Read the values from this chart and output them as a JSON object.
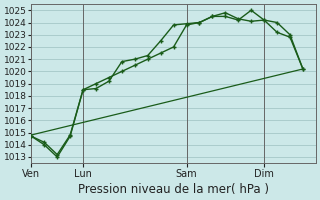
{
  "title": "Pression niveau de la mer( hPa )",
  "background_color": "#cce8e8",
  "grid_color": "#aacccc",
  "line_color": "#1a5c1a",
  "ylim": [
    1012.5,
    1025.5
  ],
  "yticks": [
    1013,
    1014,
    1015,
    1016,
    1017,
    1018,
    1019,
    1020,
    1021,
    1022,
    1023,
    1024,
    1025
  ],
  "day_labels": [
    "Ven",
    "Lun",
    "Sam",
    "Dim"
  ],
  "day_positions": [
    0,
    4,
    12,
    18
  ],
  "xlim": [
    0,
    22
  ],
  "series1_x": [
    0,
    1,
    2,
    3,
    4,
    5,
    6,
    7,
    8,
    9,
    10,
    11,
    12,
    13,
    14,
    15,
    16,
    17,
    18,
    19,
    20,
    21
  ],
  "series1_y": [
    1014.7,
    1014.0,
    1013.0,
    1014.7,
    1018.5,
    1018.6,
    1019.2,
    1020.8,
    1021.0,
    1021.3,
    1022.5,
    1023.8,
    1023.9,
    1024.0,
    1024.5,
    1024.5,
    1024.2,
    1025.0,
    1024.2,
    1024.0,
    1023.0,
    1020.2
  ],
  "series2_x": [
    0,
    1,
    2,
    3,
    4,
    5,
    6,
    7,
    8,
    9,
    10,
    11,
    12,
    13,
    14,
    15,
    16,
    17,
    18,
    19,
    20,
    21
  ],
  "series2_y": [
    1014.7,
    1014.2,
    1013.2,
    1014.8,
    1018.5,
    1019.0,
    1019.5,
    1020.0,
    1020.5,
    1021.0,
    1021.5,
    1022.0,
    1023.8,
    1024.0,
    1024.5,
    1024.8,
    1024.3,
    1024.1,
    1024.2,
    1023.2,
    1022.8,
    1020.2
  ],
  "series3_x": [
    0,
    21
  ],
  "series3_y": [
    1014.8,
    1020.2
  ],
  "xlabel_fontsize": 8.5,
  "tick_fontsize": 6.5,
  "day_tick_fontsize": 7.0
}
